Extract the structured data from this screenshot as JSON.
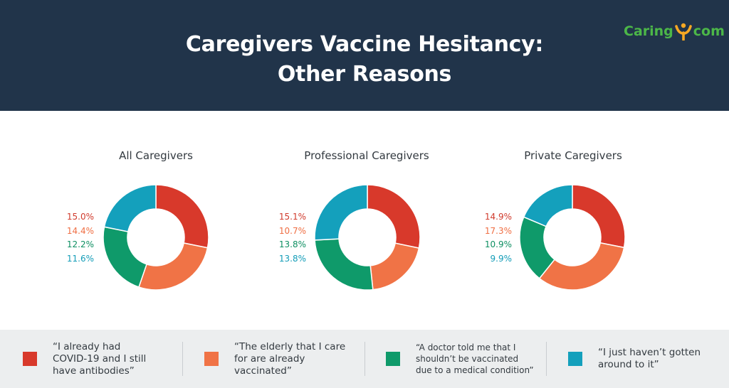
{
  "header": {
    "title_line1": "Caregivers Vaccine Hesitancy:",
    "title_line2": "Other Reasons",
    "logo_left": "Caring",
    "logo_right": "com"
  },
  "colors": {
    "header_bg": "#21344a",
    "series": [
      "#d8392b",
      "#f07346",
      "#0f9a6a",
      "#14a0bc"
    ],
    "series_labels": [
      "#d03a2c",
      "#ef6e43",
      "#0e8f62",
      "#149db8"
    ]
  },
  "chart_data": [
    {
      "type": "pie",
      "title": "All Caregivers",
      "values": [
        15.0,
        14.4,
        12.2,
        11.6
      ],
      "labels": [
        "15.0%",
        "14.4%",
        "12.2%",
        "11.6%"
      ]
    },
    {
      "type": "pie",
      "title": "Professional Caregivers",
      "values": [
        15.1,
        10.7,
        13.8,
        13.8
      ],
      "labels": [
        "15.1%",
        "10.7%",
        "13.8%",
        "13.8%"
      ]
    },
    {
      "type": "pie",
      "title": "Private Caregivers",
      "values": [
        14.9,
        17.3,
        10.9,
        9.9
      ],
      "labels": [
        "14.9%",
        "17.3%",
        "10.9%",
        "9.9%"
      ]
    }
  ],
  "legend": [
    {
      "text": "“I already had\nCOVID-19 and I still\nhave antibodies”"
    },
    {
      "text": "“The elderly that I care\nfor are already\nvaccinated”"
    },
    {
      "text": "“A doctor told me that I\nshouldn’t be vaccinated\ndue to a medical condition”"
    },
    {
      "text": "“I just haven’t gotten\naround to it”"
    }
  ]
}
